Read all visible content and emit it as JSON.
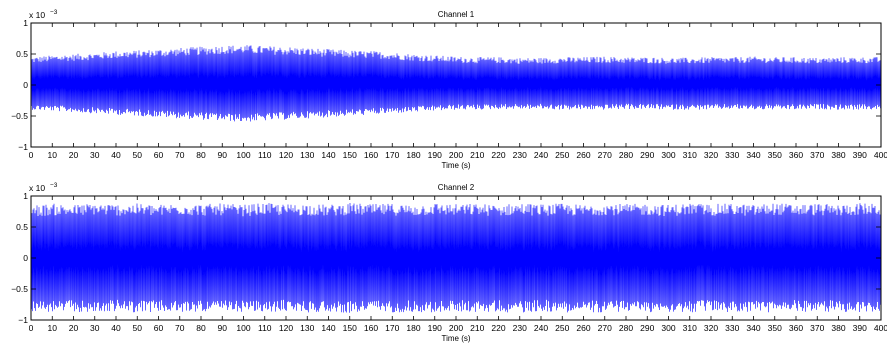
{
  "chart_data": [
    {
      "type": "line",
      "title": "Channel 1",
      "xlabel": "Time (s)",
      "ylabel": "",
      "y_exponent_label": "x 10",
      "y_exponent": "−3",
      "xlim": [
        0,
        400
      ],
      "ylim": [
        -1,
        1
      ],
      "x_ticks": [
        0,
        10,
        20,
        30,
        40,
        50,
        60,
        70,
        80,
        90,
        100,
        110,
        120,
        130,
        140,
        150,
        160,
        170,
        180,
        190,
        200,
        210,
        220,
        230,
        240,
        250,
        260,
        270,
        280,
        290,
        300,
        310,
        320,
        330,
        340,
        350,
        360,
        370,
        380,
        390,
        400
      ],
      "y_ticks": [
        -1,
        -0.5,
        0,
        0.5,
        1
      ],
      "y_tick_labels": [
        "−1",
        "−0.5",
        "0",
        "0.5",
        "1"
      ],
      "grid": false,
      "line_color": "#0000ff",
      "series": [
        {
          "x": [
            0,
            10,
            20,
            30,
            40,
            50,
            60,
            70,
            80,
            90,
            100,
            110,
            120,
            130,
            140,
            150,
            160,
            170,
            180,
            190,
            200,
            210,
            220,
            230,
            240,
            250,
            260,
            270,
            280,
            290,
            300,
            310,
            320,
            330,
            340,
            350,
            360,
            370,
            380,
            390,
            400
          ],
          "upper_envelope": [
            0.45,
            0.48,
            0.5,
            0.52,
            0.55,
            0.56,
            0.58,
            0.6,
            0.62,
            0.64,
            0.65,
            0.63,
            0.62,
            0.6,
            0.58,
            0.56,
            0.55,
            0.53,
            0.5,
            0.48,
            0.46,
            0.45,
            0.45,
            0.44,
            0.44,
            0.45,
            0.45,
            0.46,
            0.45,
            0.45,
            0.44,
            0.44,
            0.45,
            0.45,
            0.46,
            0.45,
            0.45,
            0.44,
            0.45,
            0.45,
            0.45
          ],
          "lower_envelope": [
            -0.4,
            -0.42,
            -0.44,
            -0.46,
            -0.48,
            -0.5,
            -0.52,
            -0.54,
            -0.56,
            -0.58,
            -0.6,
            -0.58,
            -0.56,
            -0.54,
            -0.52,
            -0.5,
            -0.48,
            -0.46,
            -0.44,
            -0.42,
            -0.4,
            -0.4,
            -0.39,
            -0.39,
            -0.39,
            -0.4,
            -0.4,
            -0.4,
            -0.39,
            -0.39,
            -0.4,
            -0.4,
            -0.4,
            -0.39,
            -0.4,
            -0.4,
            -0.4,
            -0.39,
            -0.4,
            -0.4,
            -0.4
          ]
        }
      ]
    },
    {
      "type": "line",
      "title": "Channel 2",
      "xlabel": "Time (s)",
      "ylabel": "",
      "y_exponent_label": "x 10",
      "y_exponent": "−3",
      "xlim": [
        0,
        400
      ],
      "ylim": [
        -1,
        1
      ],
      "x_ticks": [
        0,
        10,
        20,
        30,
        40,
        50,
        60,
        70,
        80,
        90,
        100,
        110,
        120,
        130,
        140,
        150,
        160,
        170,
        180,
        190,
        200,
        210,
        220,
        230,
        240,
        250,
        260,
        270,
        280,
        290,
        300,
        310,
        320,
        330,
        340,
        350,
        360,
        370,
        380,
        390,
        400
      ],
      "y_ticks": [
        -1,
        -0.5,
        0,
        0.5,
        1
      ],
      "y_tick_labels": [
        "−1",
        "−0.5",
        "0",
        "0.5",
        "1"
      ],
      "grid": false,
      "line_color": "#0000ff",
      "series": [
        {
          "x": [
            0,
            10,
            20,
            30,
            40,
            50,
            60,
            70,
            80,
            90,
            100,
            110,
            120,
            130,
            140,
            150,
            160,
            170,
            180,
            190,
            200,
            210,
            220,
            230,
            240,
            250,
            260,
            270,
            280,
            290,
            300,
            310,
            320,
            330,
            340,
            350,
            360,
            370,
            380,
            390,
            400
          ],
          "upper_envelope": [
            0.85,
            0.88,
            0.86,
            0.89,
            0.87,
            0.88,
            0.86,
            0.89,
            0.87,
            0.88,
            0.86,
            0.89,
            0.87,
            0.88,
            0.86,
            0.89,
            0.87,
            0.88,
            0.86,
            0.89,
            0.87,
            0.88,
            0.86,
            0.89,
            0.87,
            0.88,
            0.86,
            0.89,
            0.87,
            0.88,
            0.86,
            0.89,
            0.87,
            0.88,
            0.86,
            0.89,
            0.87,
            0.88,
            0.86,
            0.89,
            0.87
          ],
          "lower_envelope": [
            -0.86,
            -0.88,
            -0.87,
            -0.89,
            -0.86,
            -0.88,
            -0.87,
            -0.89,
            -0.86,
            -0.88,
            -0.87,
            -0.89,
            -0.86,
            -0.88,
            -0.87,
            -0.89,
            -0.86,
            -0.88,
            -0.87,
            -0.89,
            -0.86,
            -0.88,
            -0.87,
            -0.89,
            -0.86,
            -0.88,
            -0.87,
            -0.89,
            -0.86,
            -0.88,
            -0.87,
            -0.89,
            -0.86,
            -0.88,
            -0.87,
            -0.89,
            -0.86,
            -0.88,
            -0.87,
            -0.89,
            -0.86
          ]
        }
      ]
    }
  ]
}
